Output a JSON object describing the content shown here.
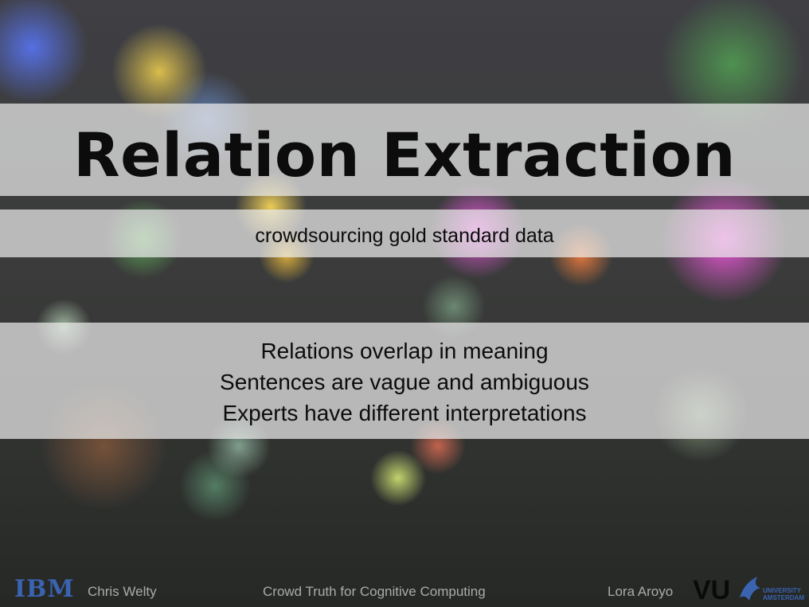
{
  "slide": {
    "title": "Relation Extraction",
    "subtitle": "crowdsourcing gold standard data",
    "body": [
      "Relations overlap in meaning",
      "Sentences are vague and ambiguous",
      "Experts have different interpretations"
    ],
    "footer": {
      "left_logo": "IBM",
      "left_author": "Chris Welty",
      "center": "Crowd Truth for Cognitive Computing",
      "right_author": "Lora Aroyo",
      "right_logo": "VU",
      "right_logo_lines": [
        "UNIVERSITY",
        "AMSTERDAM"
      ]
    }
  }
}
